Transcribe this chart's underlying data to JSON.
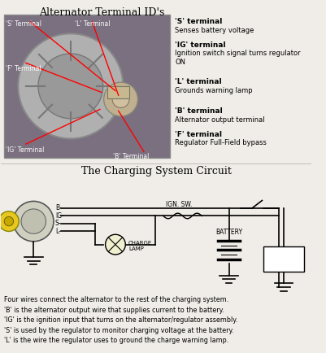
{
  "title_top": "Alternator Terminal ID's",
  "title_bottom": "The Charging System Circuit",
  "bg_color": "#f0ede8",
  "right_labels": [
    [
      "'S' terminal",
      "Senses battery voltage"
    ],
    [
      "'IG' terminal",
      "Ignition switch signal turns regulator\nON"
    ],
    [
      "'L' terminal",
      "Grounds warning lamp"
    ],
    [
      "'B' terminal",
      "Alternator output terminal"
    ],
    [
      "'F' terminal",
      "Regulator Full-Field bypass"
    ]
  ],
  "bottom_text": "Four wires connect the alternator to the rest of the charging system.\n'B' is the alternator output wire that supplies current to the battery.\n'IG' is the ignition input that turns on the alternator/regulator assembly.\n'S' is used by the regulator to monitor charging voltage at the battery.\n'L' is the wire the regulator uses to ground the charge warning lamp.",
  "circuit_labels": [
    "B",
    "IG",
    "S",
    "L"
  ],
  "text_color": "#000000",
  "photo_bg": "#6a5a7a"
}
